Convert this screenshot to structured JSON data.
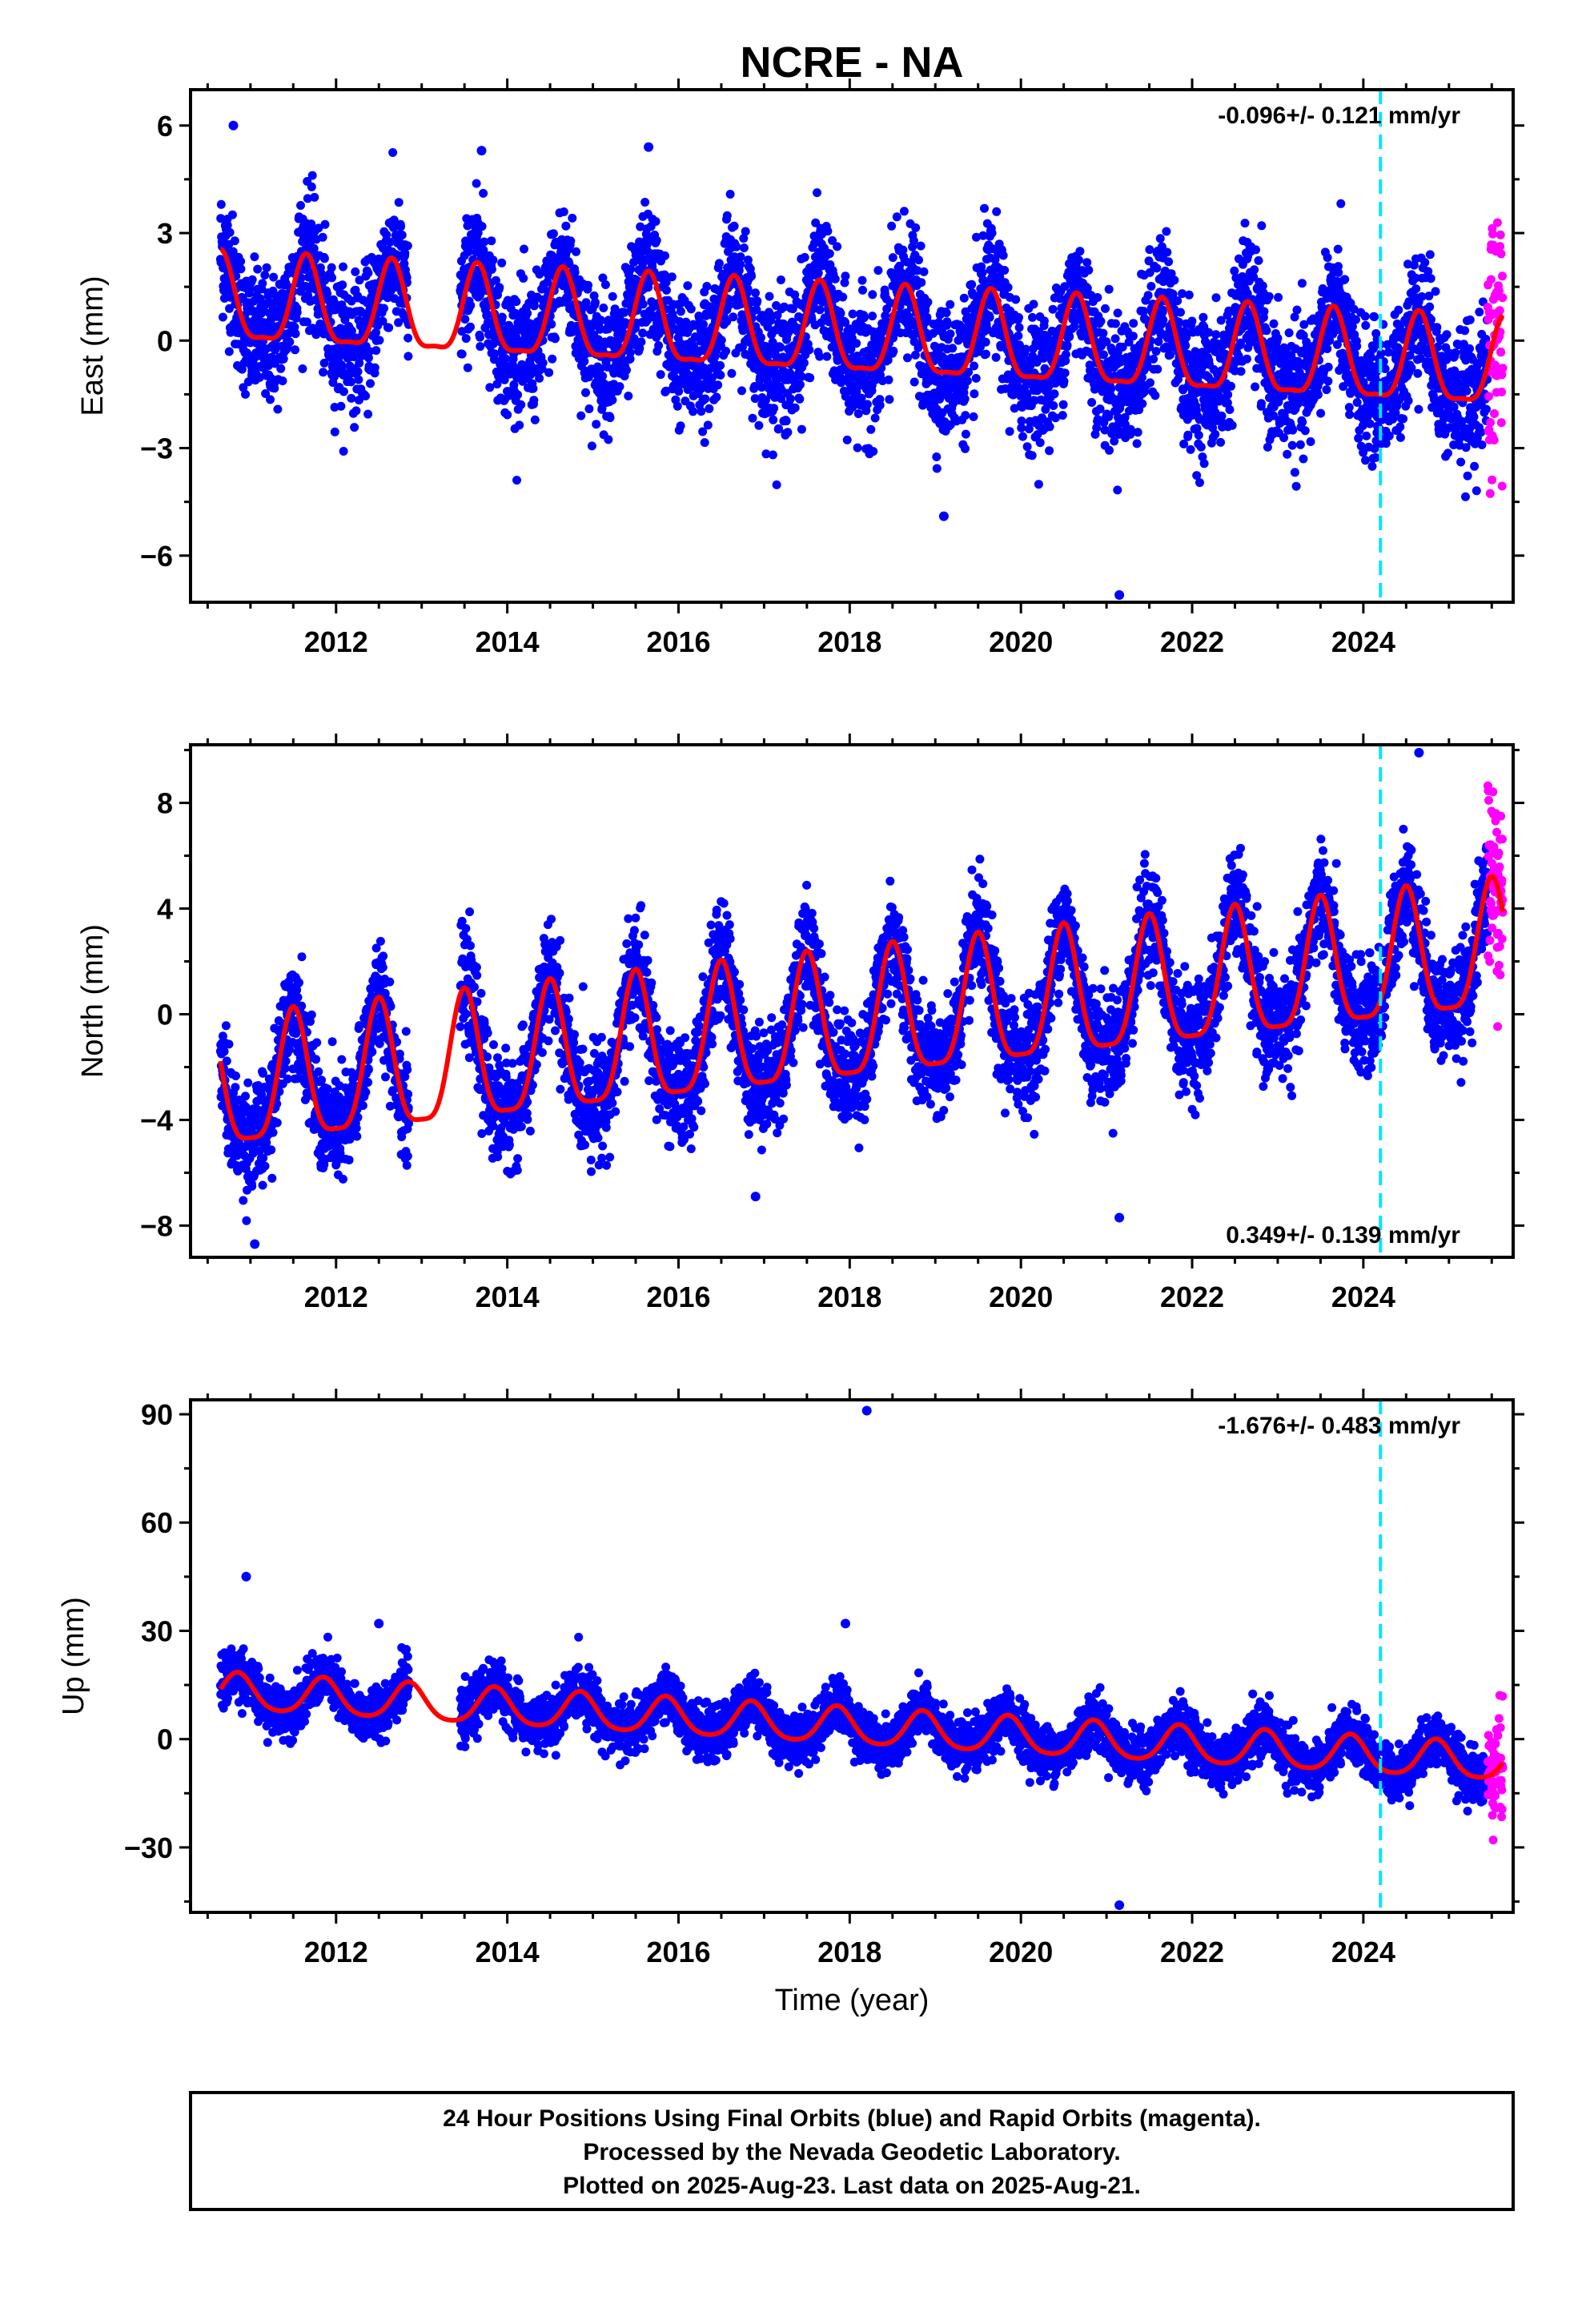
{
  "title": "NCRE - NA",
  "xlabel": "Time (year)",
  "colors": {
    "final_orbit_points": "#0000ff",
    "rapid_orbit_points": "#ff00ff",
    "model_fit": "#ff0000",
    "event_line": "#00e5ff"
  },
  "footnote": {
    "line1": "24 Hour Positions Using Final Orbits (blue) and Rapid Orbits (magenta).",
    "line2": "Processed by the Nevada Geodetic Laboratory.",
    "line3": "Plotted on 2025-Aug-23. Last data on 2025-Aug-21."
  },
  "chart_data": [
    {
      "type": "scatter",
      "id": "east",
      "ylabel": "East (mm)",
      "rate_label": "-0.096+/- 0.121 mm/yr",
      "rate_position": "top-right",
      "xlim": [
        2010.3,
        2025.75
      ],
      "ylim": [
        -7.3,
        7.0
      ],
      "xticks": [
        2012,
        2014,
        2016,
        2018,
        2020,
        2022,
        2024
      ],
      "yticks": [
        6,
        3,
        0,
        -3,
        -6
      ],
      "ytick_labels": [
        "6",
        "3",
        "0",
        "−3",
        "−6"
      ],
      "event_line_x": 2024.2,
      "data_start": 2010.65,
      "data_gap": [
        2012.85,
        2013.45
      ],
      "final_orbit_end": 2025.45,
      "rapid_orbit_end": 2025.63,
      "trend_start": 1.0,
      "trend_end": -0.8,
      "annual_amplitude": 1.2,
      "semiannual_amplitude": 0.35,
      "phase_peak_year_fraction": 0.65,
      "noise_std": 0.9,
      "outliers": [
        [
          2021.15,
          -7.1
        ],
        [
          2019.1,
          -4.9
        ],
        [
          2010.8,
          6.0
        ],
        [
          2015.65,
          5.4
        ],
        [
          2013.7,
          5.3
        ]
      ]
    },
    {
      "type": "scatter",
      "id": "north",
      "ylabel": "North (mm)",
      "rate_label": "0.349+/- 0.139 mm/yr",
      "rate_position": "bottom-right",
      "xlim": [
        2010.3,
        2025.75
      ],
      "ylim": [
        -9.2,
        10.2
      ],
      "xticks": [
        2012,
        2014,
        2016,
        2018,
        2020,
        2022,
        2024
      ],
      "yticks": [
        8,
        4,
        0,
        -4,
        -8
      ],
      "ytick_labels": [
        "8",
        "4",
        "0",
        "−4",
        "−8"
      ],
      "event_line_x": 2024.2,
      "data_start": 2010.65,
      "data_gap": [
        2012.85,
        2013.45
      ],
      "final_orbit_end": 2025.45,
      "rapid_orbit_end": 2025.63,
      "trend_start": -3.0,
      "trend_end": 2.2,
      "annual_amplitude": 2.4,
      "semiannual_amplitude": 0.6,
      "phase_peak_year_fraction": 0.5,
      "noise_std": 1.0,
      "outliers": [
        [
          2021.15,
          -7.7
        ],
        [
          2024.65,
          9.9
        ],
        [
          2016.9,
          -6.9
        ],
        [
          2011.05,
          -8.7
        ]
      ]
    },
    {
      "type": "scatter",
      "id": "up",
      "ylabel": "Up (mm)",
      "rate_label": "-1.676+/- 0.483 mm/yr",
      "rate_position": "top-right",
      "xlim": [
        2010.3,
        2025.75
      ],
      "ylim": [
        -48,
        94
      ],
      "xticks": [
        2012,
        2014,
        2016,
        2018,
        2020,
        2022,
        2024
      ],
      "yticks": [
        90,
        60,
        30,
        0,
        -30
      ],
      "ytick_labels": [
        "90",
        "60",
        "30",
        "0",
        "−30"
      ],
      "event_line_x": 2024.2,
      "data_start": 2010.65,
      "data_gap": [
        2012.85,
        2013.45
      ],
      "final_orbit_end": 2025.45,
      "rapid_orbit_end": 2025.63,
      "trend_start": 13.0,
      "trend_end": -6.5,
      "annual_amplitude": 5.0,
      "semiannual_amplitude": 0.8,
      "phase_peak_year_fraction": 0.85,
      "noise_std": 3.5,
      "outliers": [
        [
          2018.2,
          91
        ],
        [
          2021.15,
          -46
        ],
        [
          2010.95,
          45
        ],
        [
          2017.95,
          32
        ],
        [
          2012.5,
          32
        ]
      ]
    }
  ]
}
